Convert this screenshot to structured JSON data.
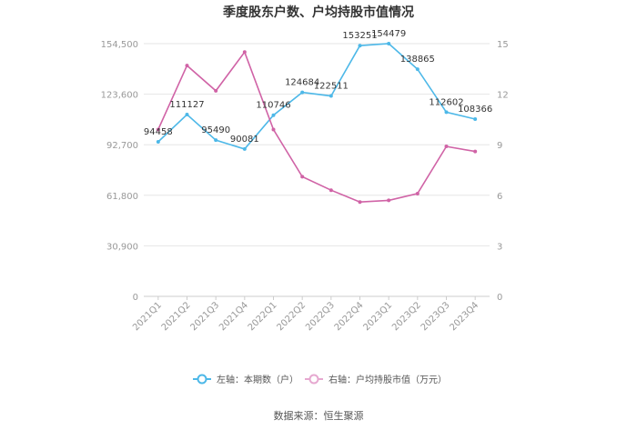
{
  "chart_data": {
    "type": "line",
    "title": "季度股东户数、户均持股市值情况",
    "source": "数据来源：恒生聚源",
    "categories": [
      "2021Q1",
      "2021Q2",
      "2021Q3",
      "2021Q4",
      "2022Q1",
      "2022Q2",
      "2022Q3",
      "2022Q4",
      "2023Q1",
      "2023Q2",
      "2023Q3",
      "2023Q4"
    ],
    "left_axis": {
      "ticks": [
        "0",
        "30,900",
        "61,800",
        "92,700",
        "123,600",
        "154,500"
      ],
      "min": 0,
      "max": 154500
    },
    "right_axis": {
      "ticks": [
        "0",
        "3",
        "6",
        "9",
        "12",
        "15"
      ],
      "min": 0,
      "max": 15
    },
    "series": [
      {
        "name": "左轴：本期数（户）",
        "axis": "left",
        "color": "#4db8e8",
        "values": [
          94458,
          111127,
          95490,
          90081,
          110746,
          124684,
          122511,
          153251,
          154479,
          138865,
          112602,
          108366
        ],
        "labels": [
          "94458",
          "111127",
          "95490",
          "90081",
          "110746",
          "124684",
          "122511",
          "153251",
          "154479",
          "138865",
          "112602",
          "108366"
        ]
      },
      {
        "name": "右轴：户均持股市值（万元）",
        "axis": "right",
        "color": "#d063a6",
        "values": [
          9.9,
          13.7,
          12.2,
          14.5,
          9.9,
          7.1,
          6.3,
          5.6,
          5.7,
          6.1,
          8.9,
          8.6
        ]
      }
    ]
  }
}
